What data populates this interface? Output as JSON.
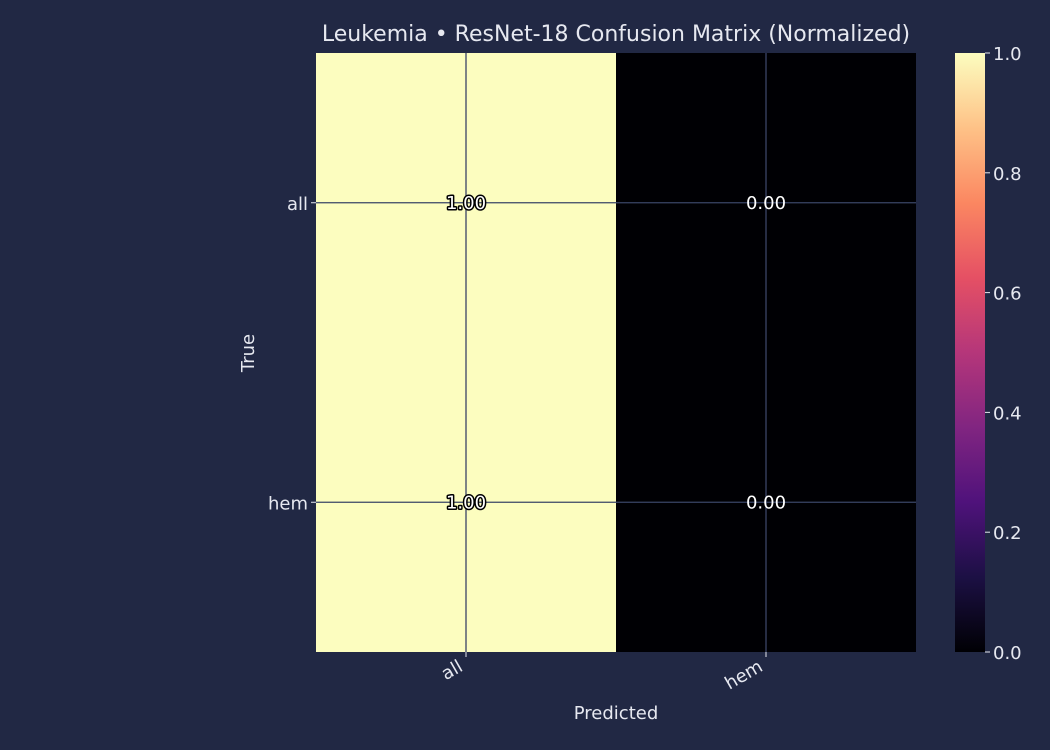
{
  "chart_data": {
    "type": "heatmap",
    "title": "Leukemia • ResNet-18 Confusion Matrix (Normalized)",
    "xlabel": "Predicted",
    "ylabel": "True",
    "x_categories": [
      "all",
      "hem"
    ],
    "y_categories": [
      "all",
      "hem"
    ],
    "values": [
      [
        1.0,
        0.0
      ],
      [
        1.0,
        0.0
      ]
    ],
    "value_labels": [
      [
        "1.00",
        "0.00"
      ],
      [
        "1.00",
        "0.00"
      ]
    ],
    "colorbar": {
      "colormap": "magma",
      "range": [
        0.0,
        1.0
      ],
      "ticks": [
        0.0,
        0.2,
        0.4,
        0.6,
        0.8,
        1.0
      ],
      "tick_labels": [
        "0.0",
        "0.2",
        "0.4",
        "0.6",
        "0.8",
        "1.0"
      ]
    },
    "grid": true
  },
  "colors": {
    "background": "#212844",
    "text": "#e6e8f0",
    "grid": "#3a4466",
    "low": "#000004",
    "high": "#fcfdbf"
  }
}
